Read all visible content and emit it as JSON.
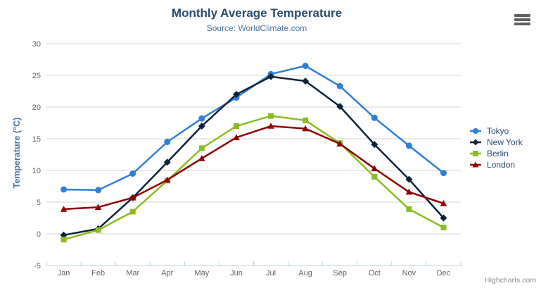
{
  "chart": {
    "title": "Monthly Average Temperature",
    "subtitle": "Source: WorldClimate.com",
    "y_axis_title": "Temperature (°C)",
    "credits": "Highcharts.com",
    "export_menu_icon": "hamburger-icon"
  },
  "chart_data": {
    "type": "line",
    "title": "Monthly Average Temperature",
    "subtitle": "Source: WorldClimate.com",
    "xlabel": "",
    "ylabel": "Temperature (°C)",
    "ylim": [
      -5,
      30
    ],
    "ytick_interval": 5,
    "yticks": [
      -5,
      0,
      5,
      10,
      15,
      20,
      25,
      30
    ],
    "grid": true,
    "legend_position": "right",
    "categories": [
      "Jan",
      "Feb",
      "Mar",
      "Apr",
      "May",
      "Jun",
      "Jul",
      "Aug",
      "Sep",
      "Oct",
      "Nov",
      "Dec"
    ],
    "series": [
      {
        "name": "Tokyo",
        "color": "#2f7ed8",
        "marker": "circle",
        "values": [
          7.0,
          6.9,
          9.5,
          14.5,
          18.2,
          21.5,
          25.2,
          26.5,
          23.3,
          18.3,
          13.9,
          9.6
        ]
      },
      {
        "name": "New York",
        "color": "#0d233a",
        "marker": "diamond",
        "values": [
          -0.2,
          0.8,
          5.7,
          11.3,
          17.0,
          22.0,
          24.8,
          24.1,
          20.1,
          14.1,
          8.6,
          2.5
        ]
      },
      {
        "name": "Berlin",
        "color": "#8bbc21",
        "marker": "square",
        "values": [
          -0.9,
          0.6,
          3.5,
          8.4,
          13.5,
          17.0,
          18.6,
          17.9,
          14.3,
          9.0,
          3.9,
          1.0
        ]
      },
      {
        "name": "London",
        "color": "#910000",
        "marker": "triangle",
        "values": [
          3.9,
          4.2,
          5.7,
          8.5,
          11.9,
          15.2,
          17.0,
          16.6,
          14.2,
          10.3,
          6.6,
          4.8
        ]
      }
    ],
    "axis_line_color": "#c0d0e0",
    "grid_line_color": "#d1d1d1"
  }
}
